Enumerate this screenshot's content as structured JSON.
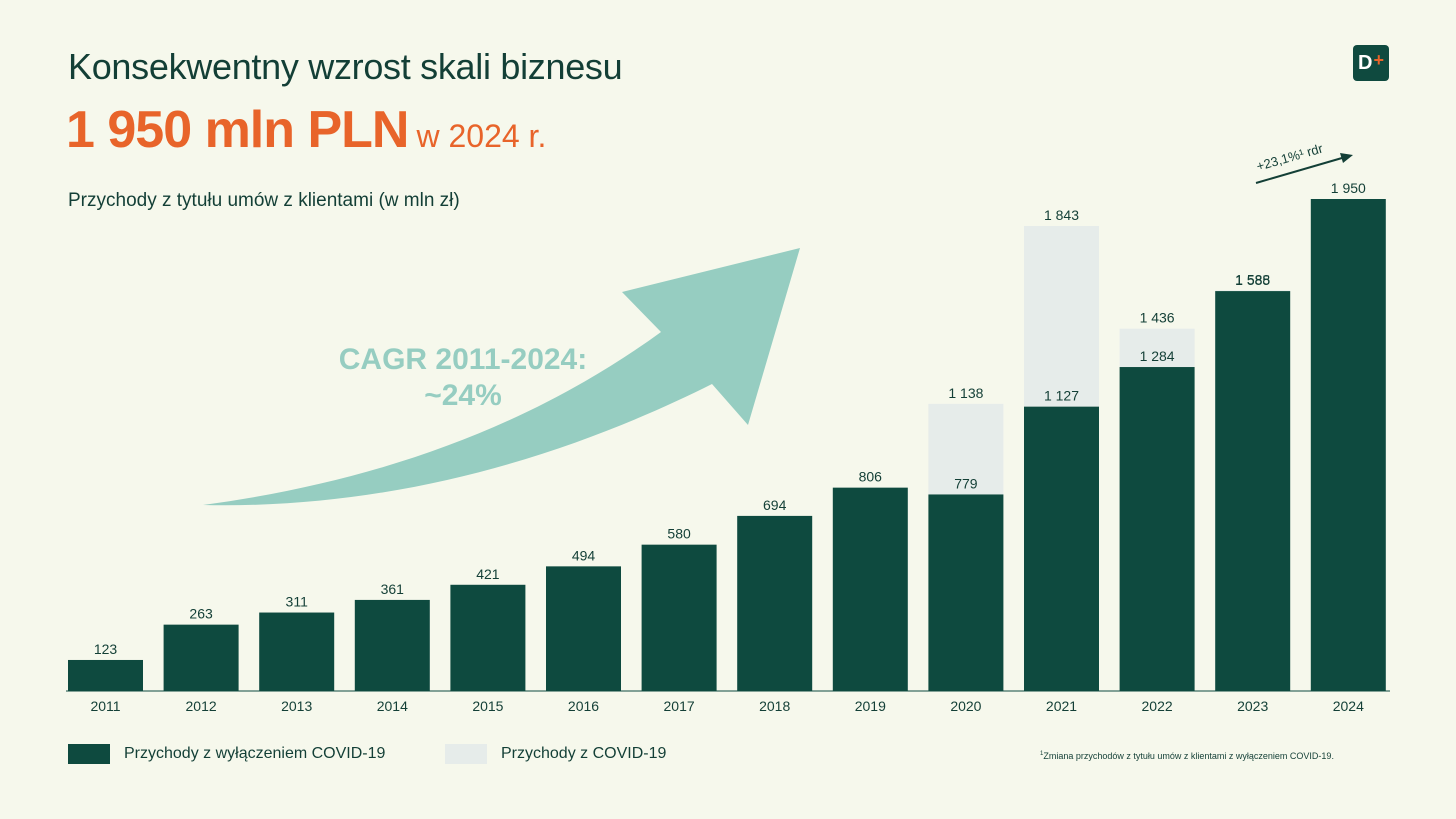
{
  "header": {
    "title": "Konsekwentny wzrost skali biznesu",
    "headline_value": "1 950 mln PLN",
    "headline_suffix": "w 2024 r.",
    "subtitle": "Przychody z tytułu umów z klientami (w mln zł)",
    "logo_text": "D",
    "logo_plus": "+"
  },
  "cagr": {
    "line1": "CAGR 2011-2024:",
    "line2": "~24%"
  },
  "growth": {
    "label": "+23,1%¹ rdr"
  },
  "legend": {
    "base_label": "Przychody z wyłączeniem COVID-19",
    "covid_label": "Przychody z COVID-19"
  },
  "footnote": {
    "mark": "1",
    "text": "Zmiana przychodów z tytułu umów z klientami z wyłączeniem COVID-19."
  },
  "colors": {
    "base": "#0e4a3f",
    "covid": "#e6ecea",
    "arrow": "#96cdc1",
    "accent": "#e8642a",
    "background": "#f6f8ec"
  },
  "chart_data": {
    "type": "bar",
    "stacked": true,
    "categories": [
      "2011",
      "2012",
      "2013",
      "2014",
      "2015",
      "2016",
      "2017",
      "2018",
      "2019",
      "2020",
      "2021",
      "2022",
      "2023",
      "2024"
    ],
    "series": [
      {
        "name": "Przychody z wyłączeniem COVID-19",
        "values": [
          123,
          263,
          311,
          361,
          421,
          494,
          580,
          694,
          806,
          779,
          1127,
          1284,
          1585,
          1950
        ]
      },
      {
        "name": "Przychody z COVID-19",
        "values": [
          0,
          0,
          0,
          0,
          0,
          0,
          0,
          0,
          0,
          359,
          716,
          152,
          3,
          0
        ]
      }
    ],
    "base_labels": [
      "123",
      "263",
      "311",
      "361",
      "421",
      "494",
      "580",
      "694",
      "806",
      "779",
      "1 127",
      "1 284",
      "1 585",
      "1 950"
    ],
    "total_labels": [
      null,
      null,
      null,
      null,
      null,
      null,
      null,
      null,
      null,
      "1 138",
      "1 843",
      "1 436",
      "1 588",
      null
    ],
    "ylim": [
      0,
      1950
    ],
    "grid": false,
    "legend_position": "bottom-left"
  }
}
